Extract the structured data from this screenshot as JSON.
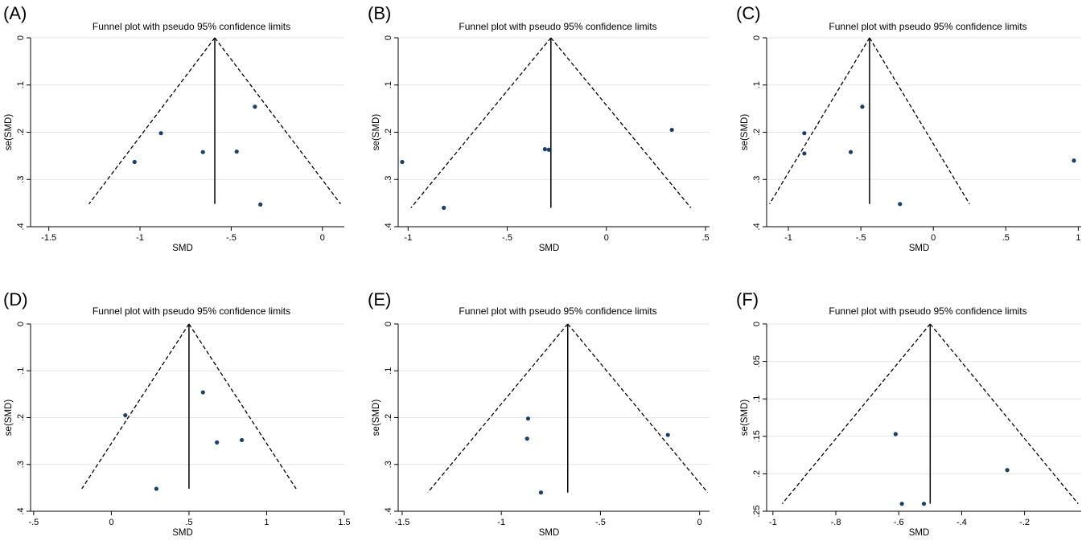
{
  "chart_data": [
    {
      "type": "scatter",
      "panel": "(A)",
      "title": "Funnel plot with pseudo 95% confidence limits",
      "xlabel": "SMD",
      "ylabel": "se(SMD)",
      "xlim": [
        -1.6,
        0.12
      ],
      "ylim": [
        0,
        0.4
      ],
      "xticks": [
        -1.5,
        -1,
        -0.5,
        0
      ],
      "xtick_labels": [
        "-1.5",
        "-1",
        "-.5",
        "0"
      ],
      "yticks": [
        0,
        0.1,
        0.2,
        0.3,
        0.4
      ],
      "ytick_labels": [
        "0",
        ".1",
        ".2",
        ".3",
        ".4"
      ],
      "pooled_smd": -0.59,
      "ci_max_se": 0.352,
      "points": [
        {
          "x": -1.03,
          "y": 0.263
        },
        {
          "x": -0.885,
          "y": 0.202
        },
        {
          "x": -0.655,
          "y": 0.242
        },
        {
          "x": -0.47,
          "y": 0.241
        },
        {
          "x": -0.37,
          "y": 0.146
        },
        {
          "x": -0.34,
          "y": 0.353
        }
      ]
    },
    {
      "type": "scatter",
      "panel": "(B)",
      "title": "Funnel plot with pseudo 95% confidence limits",
      "xlabel": "SMD",
      "ylabel": "se(SMD)",
      "xlim": [
        -1.05,
        0.52
      ],
      "ylim": [
        0,
        0.4
      ],
      "xticks": [
        -1,
        -0.5,
        0,
        0.5
      ],
      "xtick_labels": [
        "-1",
        "-.5",
        "0",
        ".5"
      ],
      "yticks": [
        0,
        0.1,
        0.2,
        0.3,
        0.4
      ],
      "ytick_labels": [
        "0",
        ".1",
        ".2",
        ".3",
        ".4"
      ],
      "pooled_smd": -0.28,
      "ci_max_se": 0.36,
      "points": [
        {
          "x": -1.03,
          "y": 0.263
        },
        {
          "x": -0.82,
          "y": 0.36
        },
        {
          "x": -0.31,
          "y": 0.236
        },
        {
          "x": -0.29,
          "y": 0.237
        },
        {
          "x": 0.33,
          "y": 0.195
        }
      ]
    },
    {
      "type": "scatter",
      "panel": "(C)",
      "title": "Funnel plot with pseudo 95% confidence limits",
      "xlabel": "SMD",
      "ylabel": "se(SMD)",
      "xlim": [
        -1.15,
        1.02
      ],
      "ylim": [
        0,
        0.4
      ],
      "xticks": [
        -1,
        -0.5,
        0,
        0.5,
        1
      ],
      "xtick_labels": [
        "-1",
        "-.5",
        "0",
        ".5",
        "1"
      ],
      "yticks": [
        0,
        0.1,
        0.2,
        0.3,
        0.4
      ],
      "ytick_labels": [
        "0",
        ".1",
        ".2",
        ".3",
        ".4"
      ],
      "pooled_smd": -0.44,
      "ci_max_se": 0.352,
      "points": [
        {
          "x": -0.89,
          "y": 0.202
        },
        {
          "x": -0.89,
          "y": 0.245
        },
        {
          "x": -0.57,
          "y": 0.242
        },
        {
          "x": -0.49,
          "y": 0.146
        },
        {
          "x": -0.23,
          "y": 0.352
        },
        {
          "x": 0.97,
          "y": 0.26
        }
      ]
    },
    {
      "type": "scatter",
      "panel": "(D)",
      "title": "Funnel plot with pseudo 95% confidence limits",
      "xlabel": "SMD",
      "ylabel": "se(SMD)",
      "xlim": [
        -0.52,
        1.5
      ],
      "ylim": [
        0,
        0.4
      ],
      "xticks": [
        -0.5,
        0,
        0.5,
        1,
        1.5
      ],
      "xtick_labels": [
        "-.5",
        "0",
        ".5",
        "1",
        "1.5"
      ],
      "yticks": [
        0,
        0.1,
        0.2,
        0.3,
        0.4
      ],
      "ytick_labels": [
        "0",
        ".1",
        ".2",
        ".3",
        ".4"
      ],
      "pooled_smd": 0.5,
      "ci_max_se": 0.352,
      "points": [
        {
          "x": 0.09,
          "y": 0.195
        },
        {
          "x": 0.29,
          "y": 0.352
        },
        {
          "x": 0.59,
          "y": 0.146
        },
        {
          "x": 0.68,
          "y": 0.253
        },
        {
          "x": 0.84,
          "y": 0.248
        }
      ]
    },
    {
      "type": "scatter",
      "panel": "(E)",
      "title": "Funnel plot with pseudo 95% confidence limits",
      "xlabel": "SMD",
      "ylabel": "se(SMD)",
      "xlim": [
        -1.52,
        0.05
      ],
      "ylim": [
        0,
        0.4
      ],
      "xticks": [
        -1.5,
        -1,
        -0.5,
        0
      ],
      "xtick_labels": [
        "-1.5",
        "-1",
        "-.5",
        "0"
      ],
      "yticks": [
        0,
        0.1,
        0.2,
        0.3,
        0.4
      ],
      "ytick_labels": [
        "0",
        ".1",
        ".2",
        ".3",
        ".4"
      ],
      "pooled_smd": -0.665,
      "ci_max_se": 0.36,
      "points": [
        {
          "x": -0.865,
          "y": 0.202
        },
        {
          "x": -0.87,
          "y": 0.245
        },
        {
          "x": -0.8,
          "y": 0.36
        },
        {
          "x": -0.16,
          "y": 0.237
        }
      ]
    },
    {
      "type": "scatter",
      "panel": "(F)",
      "title": "Funnel plot with pseudo 95% confidence limits",
      "xlabel": "SMD",
      "ylabel": "se(SMD)",
      "xlim": [
        -1.02,
        -0.02
      ],
      "ylim": [
        0,
        0.25
      ],
      "xticks": [
        -1,
        -0.8,
        -0.6,
        -0.4,
        -0.2
      ],
      "xtick_labels": [
        "-1",
        "-.8",
        "-.6",
        "-.4",
        "-.2"
      ],
      "yticks": [
        0,
        0.05,
        0.1,
        0.15,
        0.2,
        0.25
      ],
      "ytick_labels": [
        "0",
        ".05",
        ".1",
        ".15",
        ".2",
        ".25"
      ],
      "pooled_smd": -0.5,
      "ci_max_se": 0.24,
      "points": [
        {
          "x": -0.61,
          "y": 0.147
        },
        {
          "x": -0.59,
          "y": 0.24
        },
        {
          "x": -0.52,
          "y": 0.24
        },
        {
          "x": -0.255,
          "y": 0.195
        }
      ]
    }
  ]
}
